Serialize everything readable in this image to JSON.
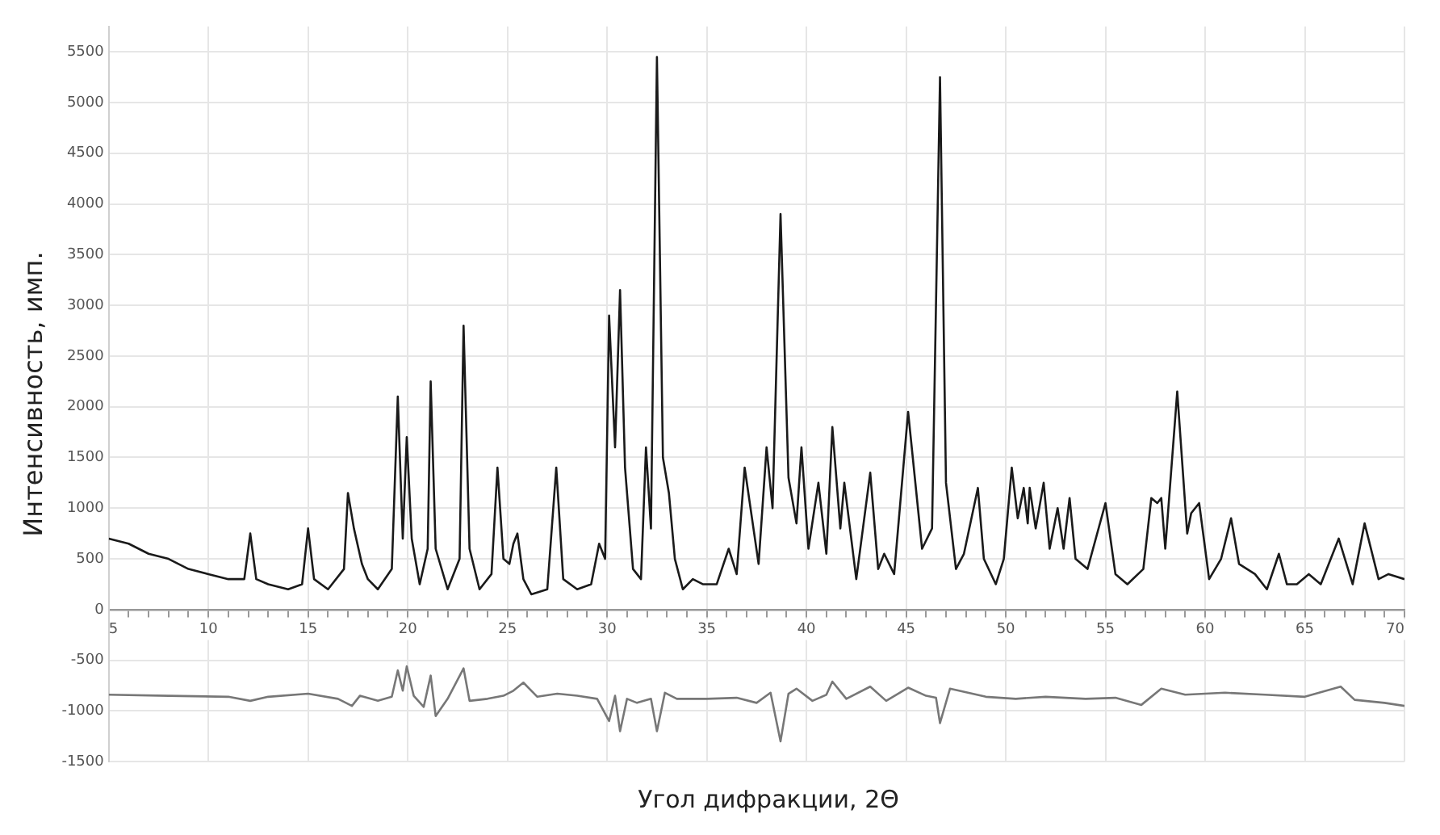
{
  "chart_data": {
    "type": "line",
    "xlabel": "Угол дифракции, 2Θ",
    "ylabel": "Интенсивность, имп.",
    "xlim": [
      5,
      70
    ],
    "ylim": [
      -1500,
      5750
    ],
    "xticks": [
      5,
      {
        "value": 6,
        "label": null
      },
      {
        "value": 7,
        "label": null
      },
      {
        "value": 8,
        "label": null
      },
      {
        "value": 9,
        "label": null
      },
      10,
      {
        "value": 11,
        "label": null
      },
      {
        "value": 12,
        "label": null
      },
      {
        "value": 13,
        "label": null
      },
      {
        "value": 14,
        "label": null
      },
      15,
      {
        "value": 16,
        "label": null
      },
      {
        "value": 17,
        "label": null
      },
      {
        "value": 18,
        "label": null
      },
      {
        "value": 19,
        "label": null
      },
      20,
      {
        "value": 21,
        "label": null
      },
      {
        "value": 22,
        "label": null
      },
      {
        "value": 23,
        "label": null
      },
      {
        "value": 24,
        "label": null
      },
      25,
      {
        "value": 26,
        "label": null
      },
      {
        "value": 27,
        "label": null
      },
      {
        "value": 28,
        "label": null
      },
      {
        "value": 29,
        "label": null
      },
      30,
      {
        "value": 31,
        "label": null
      },
      {
        "value": 32,
        "label": null
      },
      {
        "value": 33,
        "label": null
      },
      {
        "value": 34,
        "label": null
      },
      35,
      {
        "value": 36,
        "label": null
      },
      {
        "value": 37,
        "label": null
      },
      {
        "value": 38,
        "label": null
      },
      {
        "value": 39,
        "label": null
      },
      40,
      {
        "value": 41,
        "label": null
      },
      {
        "value": 42,
        "label": null
      },
      {
        "value": 43,
        "label": null
      },
      {
        "value": 44,
        "label": null
      },
      45,
      {
        "value": 46,
        "label": null
      },
      {
        "value": 47,
        "label": null
      },
      {
        "value": 48,
        "label": null
      },
      {
        "value": 49,
        "label": null
      },
      50,
      {
        "value": 51,
        "label": null
      },
      {
        "value": 52,
        "label": null
      },
      {
        "value": 53,
        "label": null
      },
      {
        "value": 54,
        "label": null
      },
      55,
      {
        "value": 56,
        "label": null
      },
      {
        "value": 57,
        "label": null
      },
      {
        "value": 58,
        "label": null
      },
      {
        "value": 59,
        "label": null
      },
      60,
      {
        "value": 61,
        "label": null
      },
      {
        "value": 62,
        "label": null
      },
      {
        "value": 63,
        "label": null
      },
      {
        "value": 64,
        "label": null
      },
      65,
      {
        "value": 66,
        "label": null
      },
      {
        "value": 67,
        "label": null
      },
      {
        "value": 68,
        "label": null
      },
      {
        "value": 69,
        "label": null
      },
      70
    ],
    "yticks": [
      -1500,
      -1000,
      -500,
      0,
      500,
      1000,
      1500,
      2000,
      2500,
      3000,
      3500,
      4000,
      4500,
      5000,
      5500
    ],
    "grid": true,
    "legend": false,
    "marker": "none",
    "line_style": "solid",
    "series": [
      {
        "color": "#1a1a1a",
        "x": [
          5,
          6,
          7,
          8,
          9,
          10,
          11,
          11.8,
          12.1,
          12.4,
          13,
          14,
          14.7,
          15,
          15.3,
          16,
          16.8,
          17,
          17.3,
          17.7,
          18,
          18.5,
          19.2,
          19.5,
          19.75,
          19.95,
          20.2,
          20.6,
          21,
          21.15,
          21.4,
          22,
          22.6,
          22.8,
          23.1,
          23.6,
          24.2,
          24.5,
          24.8,
          25.1,
          25.3,
          25.5,
          25.8,
          26.2,
          27,
          27.45,
          27.8,
          28.5,
          29.2,
          29.6,
          29.9,
          30.1,
          30.4,
          30.65,
          30.9,
          31.3,
          31.7,
          31.95,
          32.2,
          32.5,
          32.8,
          33.1,
          33.4,
          33.8,
          34.3,
          34.8,
          35.5,
          36.1,
          36.5,
          36.9,
          37.6,
          38,
          38.3,
          38.7,
          39.1,
          39.5,
          39.75,
          40.1,
          40.6,
          41,
          41.3,
          41.7,
          41.9,
          42.5,
          43.2,
          43.6,
          43.9,
          44.4,
          45.1,
          45.8,
          46.3,
          46.7,
          47,
          47.5,
          47.9,
          48.6,
          48.9,
          49.5,
          49.9,
          50.3,
          50.6,
          50.9,
          51.1,
          51.2,
          51.5,
          51.9,
          52.2,
          52.6,
          52.9,
          53.2,
          53.5,
          54.1,
          55,
          55.5,
          56.1,
          56.9,
          57.3,
          57.6,
          57.8,
          58,
          58.6,
          59.1,
          59.3,
          59.7,
          60.2,
          60.8,
          61.3,
          61.7,
          62.5,
          63.1,
          63.7,
          64.1,
          64.6,
          65.2,
          65.8,
          66.7,
          67.4,
          68,
          68.7,
          69.2,
          70
        ],
        "values": [
          700,
          650,
          550,
          500,
          400,
          350,
          300,
          300,
          750,
          300,
          250,
          200,
          250,
          800,
          300,
          200,
          400,
          1150,
          800,
          450,
          300,
          200,
          400,
          2100,
          700,
          1700,
          700,
          250,
          600,
          2250,
          600,
          200,
          500,
          2800,
          600,
          200,
          350,
          1400,
          500,
          450,
          650,
          750,
          300,
          150,
          200,
          1400,
          300,
          200,
          250,
          650,
          500,
          2900,
          1600,
          3150,
          1400,
          400,
          300,
          1600,
          800,
          5450,
          1500,
          1150,
          500,
          200,
          300,
          250,
          250,
          600,
          350,
          1400,
          450,
          1600,
          1000,
          3900,
          1300,
          850,
          1600,
          600,
          1250,
          550,
          1800,
          800,
          1250,
          300,
          1350,
          400,
          550,
          350,
          1950,
          600,
          800,
          5250,
          1250,
          400,
          550,
          1200,
          500,
          250,
          500,
          1400,
          900,
          1200,
          850,
          1200,
          800,
          1250,
          600,
          1000,
          600,
          1100,
          500,
          400,
          1050,
          350,
          250,
          400,
          1100,
          1050,
          1100,
          600,
          2150,
          750,
          950,
          1050,
          300,
          500,
          900,
          450,
          350,
          200,
          550,
          250,
          250,
          350,
          250,
          700,
          250,
          850,
          300,
          350,
          300
        ]
      },
      {
        "color": "#777777",
        "x": [
          5,
          8,
          11,
          12.1,
          13,
          15,
          16.5,
          17.2,
          17.6,
          18.5,
          19.2,
          19.5,
          19.75,
          19.95,
          20.3,
          20.8,
          21.15,
          21.4,
          22,
          22.8,
          23.1,
          24,
          24.8,
          25.3,
          25.8,
          26.5,
          27.5,
          28.5,
          29.5,
          30.1,
          30.4,
          30.65,
          31,
          31.5,
          32.2,
          32.5,
          32.9,
          33.5,
          35,
          36.5,
          37.5,
          38.2,
          38.7,
          39.1,
          39.5,
          40.3,
          41,
          41.3,
          42,
          43.2,
          44,
          45.1,
          46,
          46.5,
          46.7,
          47.2,
          49,
          50.5,
          52,
          54,
          55.5,
          56.8,
          57.8,
          59,
          61,
          63,
          65,
          66.8,
          67.5,
          69,
          70
        ],
        "values": [
          -840,
          -850,
          -860,
          -900,
          -860,
          -830,
          -880,
          -950,
          -850,
          -900,
          -860,
          -600,
          -800,
          -560,
          -850,
          -960,
          -650,
          -1050,
          -880,
          -580,
          -900,
          -880,
          -850,
          -800,
          -720,
          -860,
          -830,
          -850,
          -880,
          -1100,
          -850,
          -1200,
          -880,
          -920,
          -880,
          -1200,
          -820,
          -880,
          -880,
          -870,
          -920,
          -820,
          -1300,
          -830,
          -780,
          -900,
          -840,
          -710,
          -880,
          -760,
          -900,
          -770,
          -850,
          -870,
          -1120,
          -780,
          -860,
          -880,
          -860,
          -880,
          -870,
          -940,
          -780,
          -840,
          -820,
          -840,
          -860,
          -760,
          -890,
          -920,
          -950
        ]
      }
    ]
  }
}
